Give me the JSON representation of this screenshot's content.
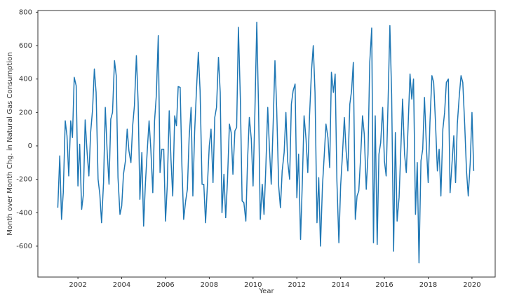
{
  "chart_data": {
    "type": "line",
    "x_label": "Year",
    "y_label": "Month over Month Chg. in Natural Gas Consumption",
    "xlim": [
      2000.17,
      2021.06
    ],
    "ylim": [
      -785,
      810
    ],
    "xticks": [
      2002,
      2004,
      2006,
      2008,
      2010,
      2012,
      2014,
      2016,
      2018,
      2020
    ],
    "yticks": [
      -600,
      -400,
      -200,
      0,
      200,
      400,
      600,
      800
    ],
    "grid": false,
    "series": [
      {
        "color": "#1f77b4",
        "x": [
          2001.08,
          2001.17,
          2001.25,
          2001.33,
          2001.42,
          2001.5,
          2001.58,
          2001.67,
          2001.75,
          2001.83,
          2001.92,
          2002,
          2002.08,
          2002.17,
          2002.25,
          2002.33,
          2002.42,
          2002.5,
          2002.58,
          2002.67,
          2002.75,
          2002.83,
          2002.92,
          2003,
          2003.08,
          2003.17,
          2003.25,
          2003.33,
          2003.42,
          2003.5,
          2003.58,
          2003.67,
          2003.75,
          2003.83,
          2003.92,
          2004,
          2004.08,
          2004.17,
          2004.25,
          2004.33,
          2004.42,
          2004.5,
          2004.58,
          2004.67,
          2004.75,
          2004.83,
          2004.92,
          2005,
          2005.08,
          2005.17,
          2005.25,
          2005.33,
          2005.42,
          2005.5,
          2005.58,
          2005.67,
          2005.75,
          2005.83,
          2005.92,
          2006,
          2006.08,
          2006.17,
          2006.25,
          2006.33,
          2006.42,
          2006.5,
          2006.58,
          2006.67,
          2006.75,
          2006.83,
          2006.92,
          2007,
          2007.08,
          2007.17,
          2007.25,
          2007.33,
          2007.42,
          2007.5,
          2007.58,
          2007.67,
          2007.75,
          2007.83,
          2007.92,
          2008,
          2008.08,
          2008.17,
          2008.25,
          2008.33,
          2008.42,
          2008.5,
          2008.58,
          2008.67,
          2008.75,
          2008.83,
          2008.92,
          2009,
          2009.08,
          2009.17,
          2009.25,
          2009.33,
          2009.42,
          2009.5,
          2009.58,
          2009.67,
          2009.75,
          2009.83,
          2009.92,
          2010,
          2010.08,
          2010.17,
          2010.25,
          2010.33,
          2010.42,
          2010.5,
          2010.58,
          2010.67,
          2010.75,
          2010.83,
          2010.92,
          2011,
          2011.08,
          2011.17,
          2011.25,
          2011.33,
          2011.42,
          2011.5,
          2011.58,
          2011.67,
          2011.75,
          2011.83,
          2011.92,
          2012,
          2012.08,
          2012.17,
          2012.25,
          2012.33,
          2012.42,
          2012.5,
          2012.58,
          2012.67,
          2012.75,
          2012.83,
          2012.92,
          2013,
          2013.08,
          2013.17,
          2013.25,
          2013.33,
          2013.42,
          2013.5,
          2013.58,
          2013.67,
          2013.75,
          2013.83,
          2013.92,
          2014,
          2014.08,
          2014.17,
          2014.25,
          2014.33,
          2014.42,
          2014.5,
          2014.58,
          2014.67,
          2014.75,
          2014.83,
          2014.92,
          2015,
          2015.08,
          2015.17,
          2015.25,
          2015.33,
          2015.42,
          2015.5,
          2015.58,
          2015.67,
          2015.75,
          2015.83,
          2015.92,
          2016,
          2016.08,
          2016.17,
          2016.25,
          2016.33,
          2016.42,
          2016.5,
          2016.58,
          2016.67,
          2016.75,
          2016.83,
          2016.92,
          2017,
          2017.08,
          2017.17,
          2017.25,
          2017.33,
          2017.42,
          2017.5,
          2017.58,
          2017.67,
          2017.75,
          2017.83,
          2017.92,
          2018,
          2018.08,
          2018.17,
          2018.25,
          2018.33,
          2018.42,
          2018.5,
          2018.58,
          2018.67,
          2018.75,
          2018.83,
          2018.92,
          2019,
          2019.08,
          2019.17,
          2019.25,
          2019.33,
          2019.42,
          2019.5,
          2019.58,
          2019.67,
          2019.75,
          2019.83,
          2019.92,
          2020,
          2020.08
        ],
        "values": [
          -370,
          -60,
          -440,
          -280,
          150,
          60,
          -180,
          150,
          50,
          410,
          360,
          -240,
          10,
          -380,
          -290,
          155,
          -40,
          -180,
          80,
          220,
          460,
          320,
          -200,
          -290,
          -460,
          -220,
          230,
          -20,
          -230,
          160,
          200,
          510,
          420,
          -190,
          -410,
          -360,
          -170,
          -90,
          100,
          -30,
          -100,
          120,
          240,
          540,
          260,
          -320,
          -40,
          -480,
          -230,
          -20,
          150,
          -20,
          -280,
          150,
          300,
          660,
          -160,
          -20,
          -20,
          -450,
          -240,
          210,
          -80,
          -300,
          180,
          120,
          355,
          350,
          -120,
          -440,
          -330,
          -260,
          50,
          230,
          -300,
          80,
          350,
          560,
          330,
          -230,
          -230,
          -460,
          -220,
          0,
          100,
          -220,
          170,
          230,
          530,
          320,
          -400,
          -170,
          -430,
          -210,
          130,
          80,
          -170,
          90,
          110,
          710,
          280,
          -330,
          -340,
          -450,
          -80,
          170,
          40,
          -240,
          180,
          740,
          230,
          -440,
          -230,
          -410,
          -140,
          230,
          -20,
          -230,
          140,
          510,
          220,
          -240,
          -370,
          -150,
          -40,
          200,
          -90,
          -200,
          250,
          330,
          370,
          -310,
          -50,
          -560,
          -220,
          180,
          40,
          -160,
          180,
          450,
          600,
          320,
          -460,
          -190,
          -600,
          -240,
          -60,
          130,
          50,
          -130,
          440,
          320,
          430,
          -210,
          -580,
          -240,
          -60,
          170,
          -30,
          -150,
          250,
          330,
          500,
          -440,
          -300,
          -270,
          -50,
          180,
          70,
          -260,
          -50,
          500,
          705,
          -580,
          180,
          -590,
          -50,
          20,
          230,
          -90,
          -180,
          280,
          720,
          310,
          -630,
          80,
          -450,
          -310,
          -20,
          280,
          -50,
          -160,
          110,
          430,
          280,
          400,
          -410,
          -100,
          -700,
          -90,
          -20,
          290,
          -10,
          -220,
          140,
          420,
          380,
          150,
          -150,
          -20,
          -300,
          100,
          200,
          380,
          400,
          -280,
          -120,
          60,
          -220,
          130,
          300,
          420,
          380,
          120,
          -150,
          -300,
          -100,
          200,
          -150
        ]
      }
    ]
  }
}
